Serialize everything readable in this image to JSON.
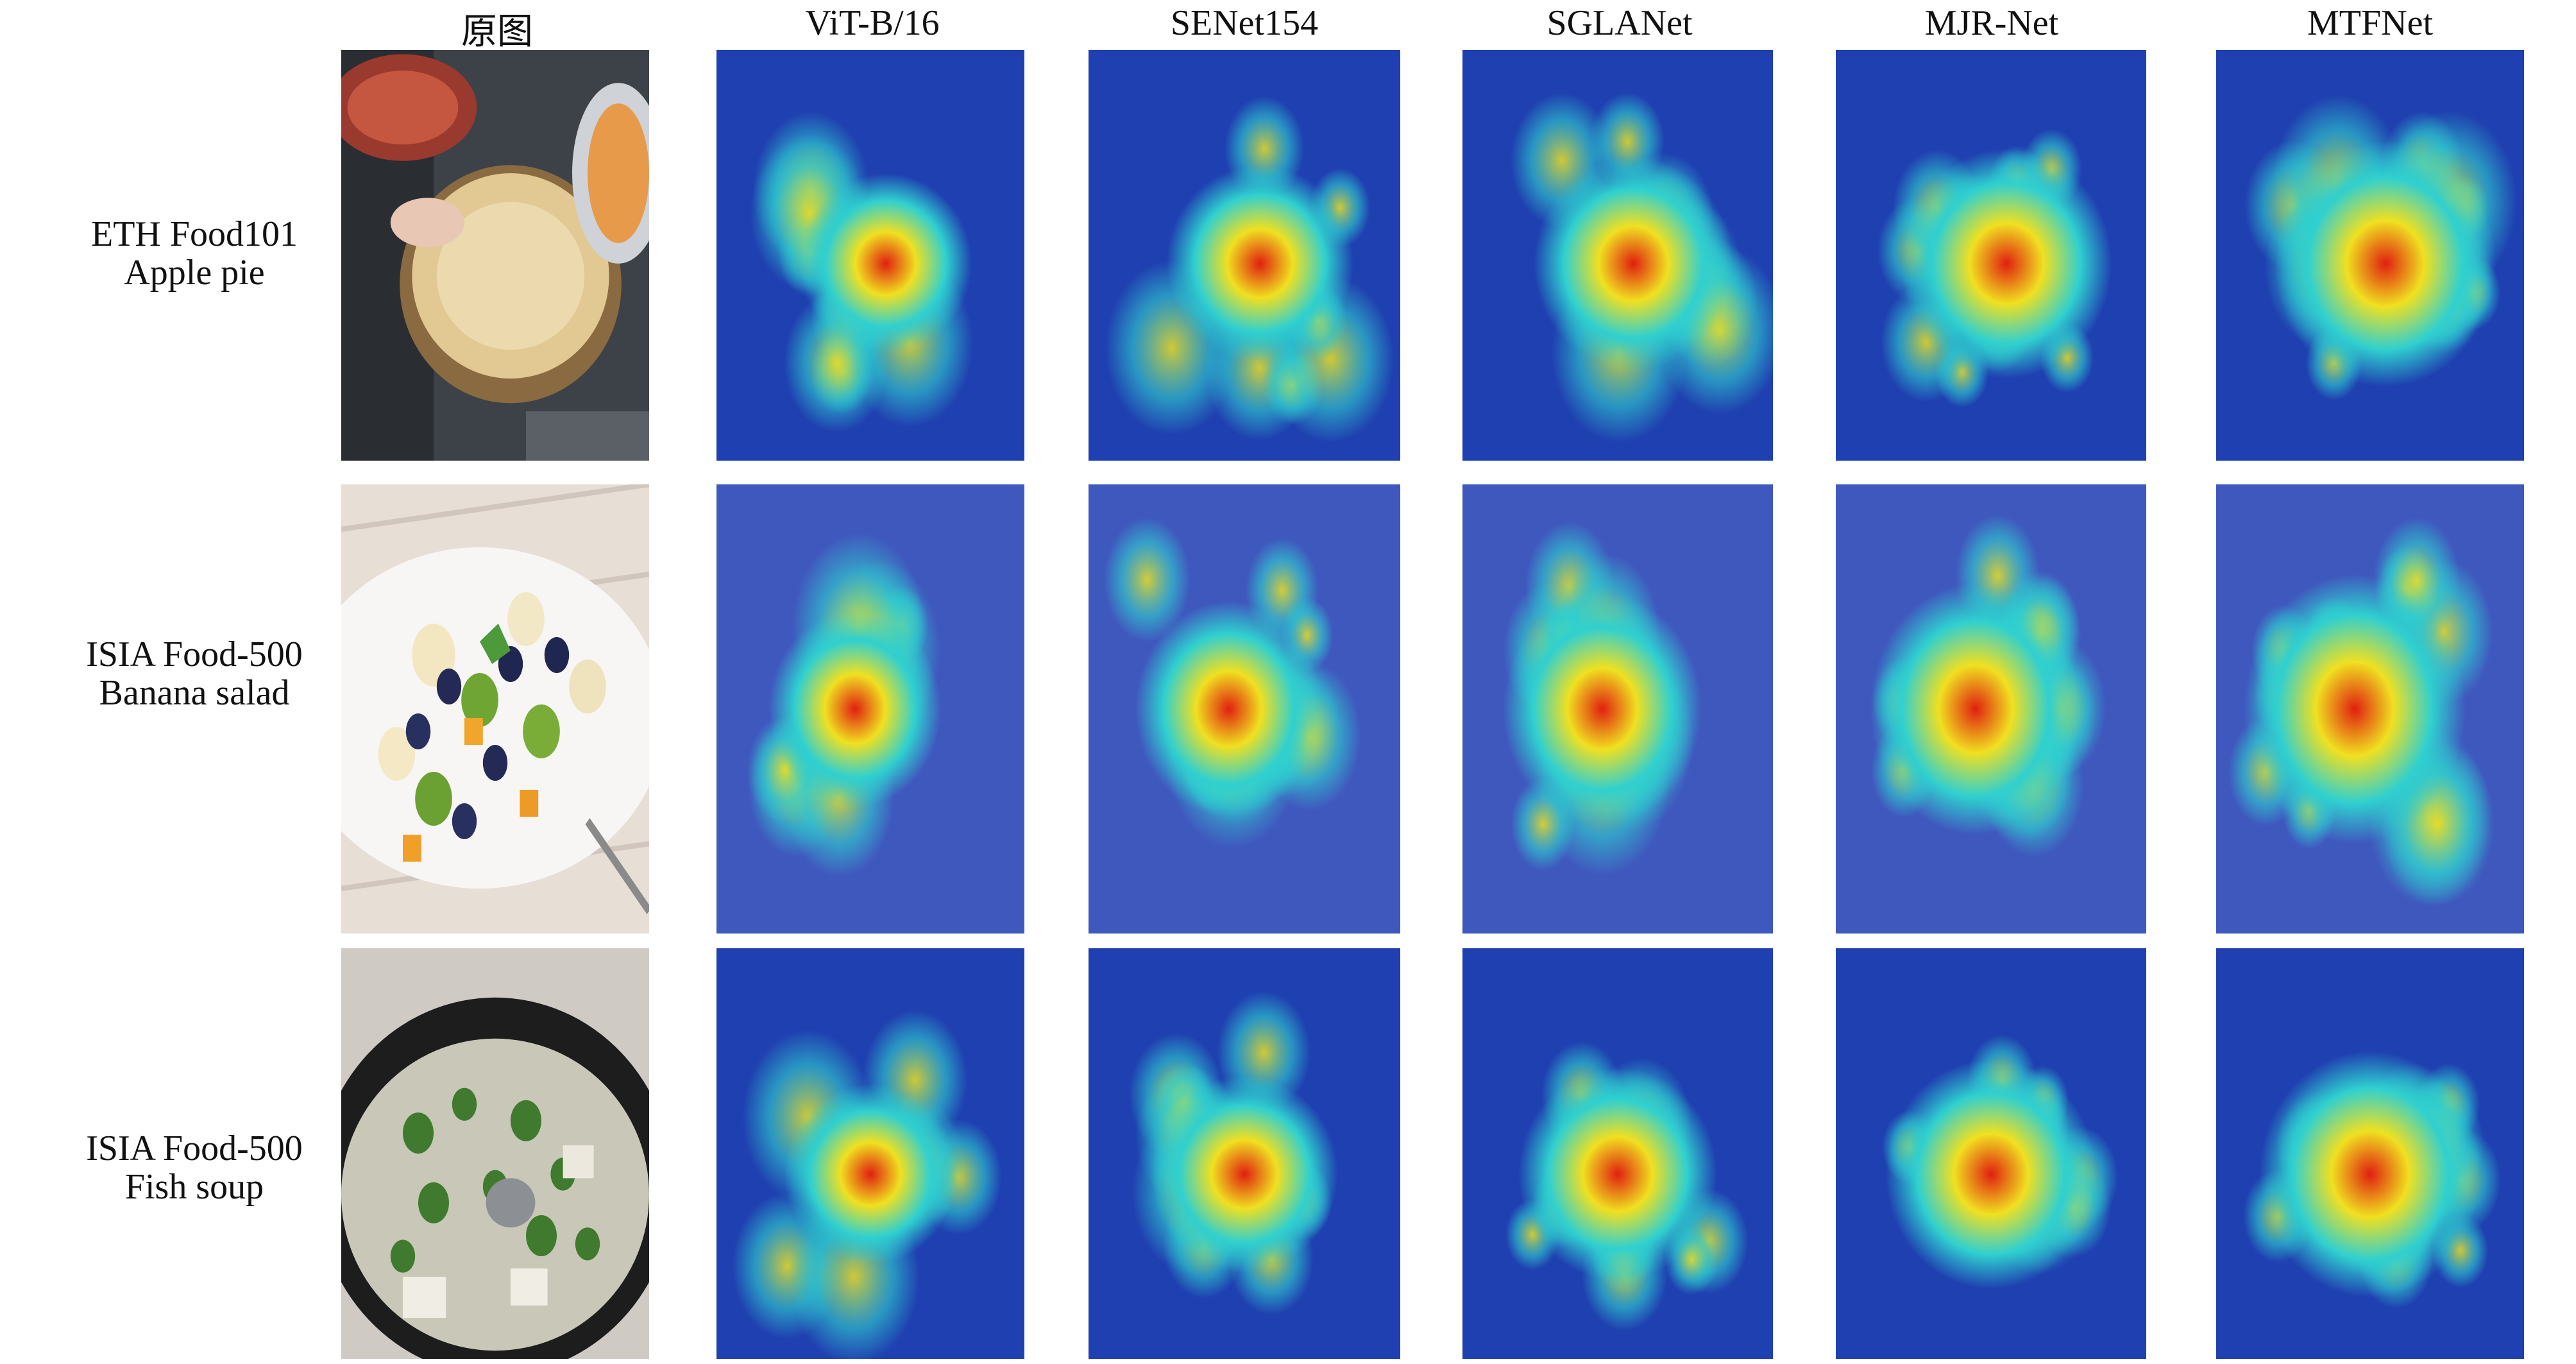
{
  "columns": [
    {
      "label": "原图"
    },
    {
      "label": "ViT-B/16"
    },
    {
      "label": "SENet154"
    },
    {
      "label": "SGLANet"
    },
    {
      "label": "MJR-Net"
    },
    {
      "label": "MTFNet"
    }
  ],
  "rows": [
    {
      "dataset": "ETH Food101",
      "category": "Apple pie"
    },
    {
      "dataset": "ISIA Food-500",
      "category": "Banana salad"
    },
    {
      "dataset": "ISIA Food-500",
      "category": "Fish soup"
    }
  ],
  "colors": {
    "heat_low": "#1a2a9e",
    "heat_mid": "#2fd0d0",
    "heat_high": "#f0e020",
    "heat_peak": "#e02010"
  }
}
